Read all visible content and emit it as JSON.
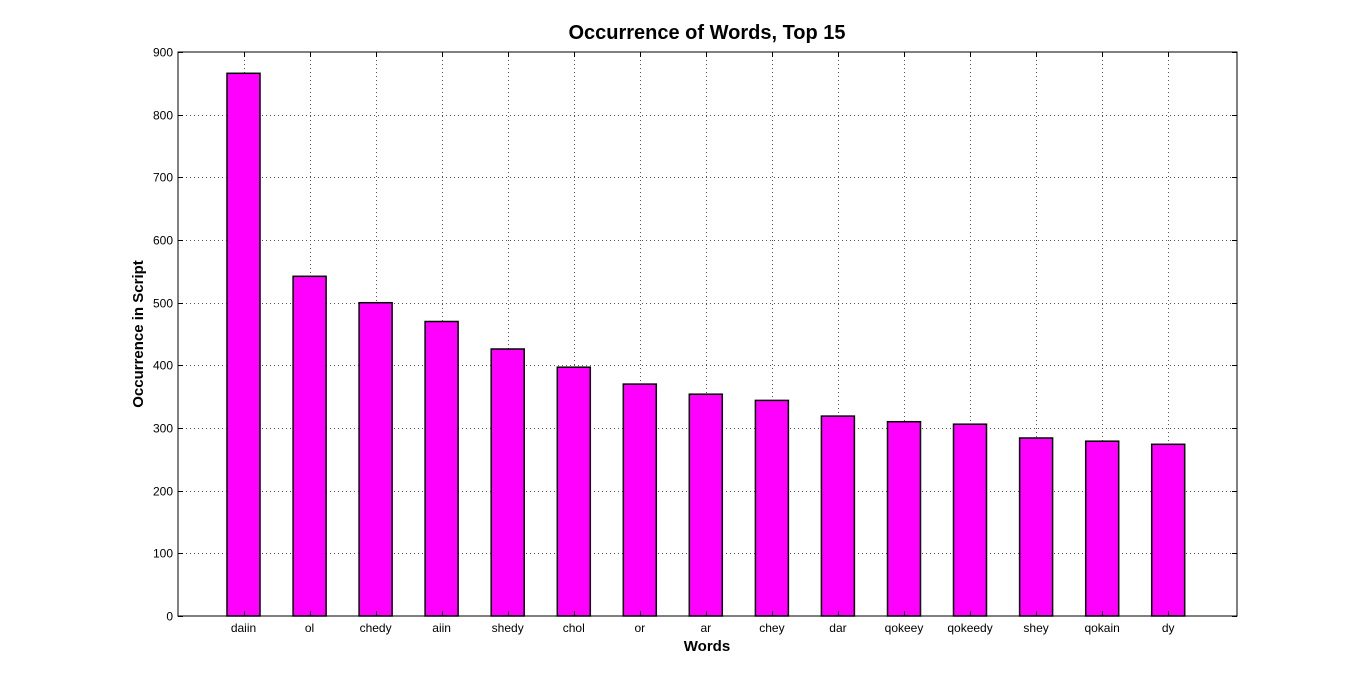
{
  "chart_data": {
    "type": "bar",
    "title": "Occurrence of Words, Top 15",
    "xlabel": "Words",
    "ylabel": "Occurrence in Script",
    "categories": [
      "daiin",
      "ol",
      "chedy",
      "aiin",
      "shedy",
      "chol",
      "or",
      "ar",
      "chey",
      "dar",
      "qokeey",
      "qokeedy",
      "shey",
      "qokain",
      "dy"
    ],
    "values": [
      866,
      542,
      500,
      470,
      426,
      397,
      370,
      354,
      344,
      319,
      310,
      306,
      284,
      279,
      274
    ],
    "ylim": [
      0,
      900
    ],
    "yticks": [
      0,
      100,
      200,
      300,
      400,
      500,
      600,
      700,
      800,
      900
    ],
    "grid": true,
    "legend": "none",
    "colors": {
      "bar_fill": "#ff00ff",
      "bar_edge": "#000000",
      "grid": "#555555",
      "axes": "#000000"
    }
  }
}
